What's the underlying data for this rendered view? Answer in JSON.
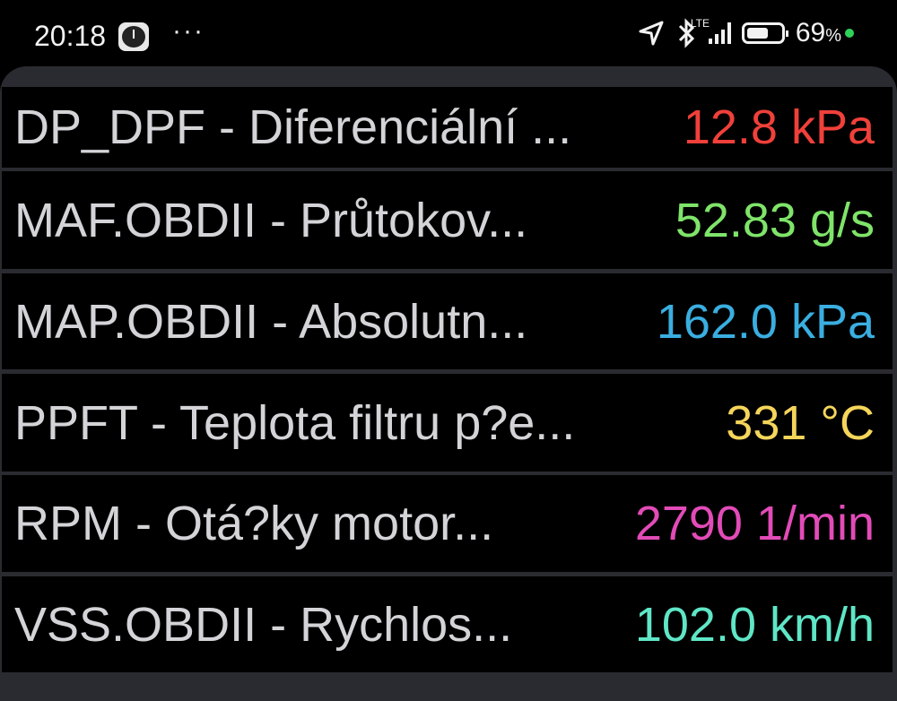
{
  "status_bar": {
    "time": "20:18",
    "more": "···",
    "network": "LTE",
    "battery_percent": 69,
    "battery_label": "69",
    "battery_unit": "%",
    "icons": [
      "clock-app-icon",
      "location-icon",
      "bluetooth-icon",
      "signal-icon",
      "battery-icon"
    ],
    "dot_color": "#2ed158"
  },
  "rows": [
    {
      "name": "DP_DPF - Diferenciální ...",
      "value": "12.8 kPa",
      "color": "#f0403a"
    },
    {
      "name": "MAF.OBDII - Průtokov...",
      "value": "52.83 g/s",
      "color": "#7fe46a"
    },
    {
      "name": "MAP.OBDII - Absolutn...",
      "value": "162.0 kPa",
      "color": "#3aaee0"
    },
    {
      "name": "PPFT - Teplota filtru p?e...",
      "value": "331 °C",
      "color": "#f5d55a"
    },
    {
      "name": "RPM - Otá?ky motor...",
      "value": "2790 1/min",
      "color": "#e24bb8"
    },
    {
      "name": "VSS.OBDII - Rychlos...",
      "value": "102.0 km/h",
      "color": "#5fe6c6"
    }
  ]
}
